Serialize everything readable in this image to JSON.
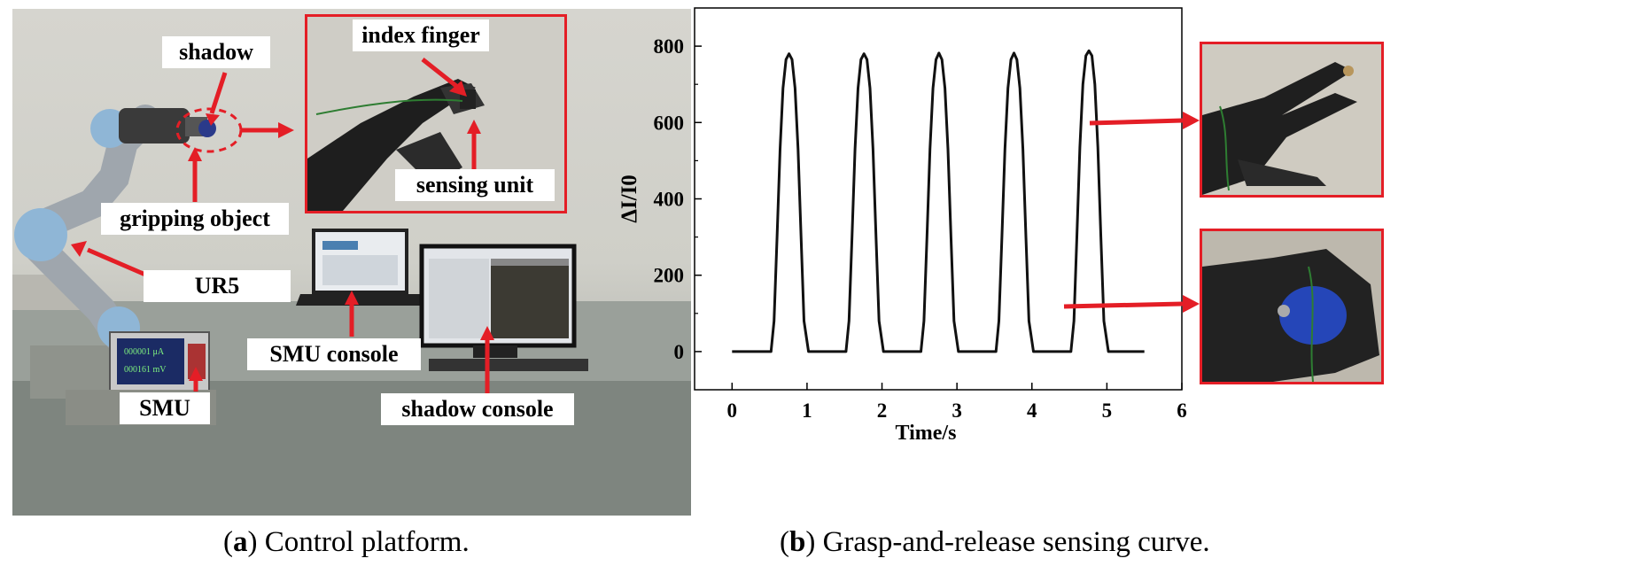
{
  "panel_a": {
    "labels": {
      "shadow": "shadow",
      "index_finger": "index finger",
      "sensing_unit": "sensing unit",
      "gripping_object": "gripping object",
      "ur5": "UR5",
      "smu_console": "SMU console",
      "smu": "SMU",
      "shadow_console": "shadow console"
    },
    "screen_readouts": [
      "000001 μA",
      "000161 mV"
    ],
    "caption_letter": "a",
    "caption_text": "Control platform."
  },
  "panel_b": {
    "caption_letter": "b",
    "caption_text": "Grasp-and-release sensing curve."
  },
  "colors": {
    "annotation_red": "#e41e26",
    "curve": "#111111"
  },
  "chart_data": {
    "type": "line",
    "title": "",
    "xlabel": "Time/s",
    "ylabel": "ΔI/I0",
    "xlim": [
      -0.5,
      6
    ],
    "ylim": [
      -100,
      900
    ],
    "xticks": [
      0,
      1,
      2,
      3,
      4,
      5,
      6
    ],
    "yticks": [
      0,
      200,
      400,
      600,
      800
    ],
    "grid": false,
    "legend": "none",
    "series": [
      {
        "x": [
          0,
          0.52,
          0.56,
          0.6,
          0.64,
          0.68,
          0.72,
          0.76,
          0.8,
          0.84,
          0.88,
          0.92,
          0.96,
          1.02,
          1.52,
          1.56,
          1.6,
          1.64,
          1.68,
          1.72,
          1.76,
          1.8,
          1.84,
          1.88,
          1.92,
          1.96,
          2.02,
          2.52,
          2.56,
          2.6,
          2.64,
          2.68,
          2.72,
          2.76,
          2.8,
          2.84,
          2.88,
          2.92,
          2.96,
          3.02,
          3.52,
          3.56,
          3.6,
          3.64,
          3.68,
          3.72,
          3.76,
          3.8,
          3.84,
          3.88,
          3.92,
          3.96,
          4.02,
          4.52,
          4.56,
          4.6,
          4.64,
          4.68,
          4.72,
          4.76,
          4.8,
          4.84,
          4.88,
          4.92,
          4.96,
          5.02,
          5.5
        ],
        "y": [
          0,
          0,
          80,
          300,
          530,
          690,
          765,
          780,
          765,
          690,
          530,
          300,
          80,
          0,
          0,
          80,
          300,
          530,
          690,
          765,
          780,
          765,
          690,
          530,
          300,
          80,
          0,
          0,
          80,
          300,
          530,
          690,
          765,
          782,
          765,
          690,
          530,
          300,
          80,
          0,
          0,
          80,
          300,
          530,
          690,
          765,
          782,
          765,
          690,
          530,
          300,
          80,
          0,
          0,
          80,
          300,
          535,
          700,
          775,
          788,
          775,
          700,
          535,
          300,
          80,
          0,
          0
        ]
      }
    ]
  }
}
